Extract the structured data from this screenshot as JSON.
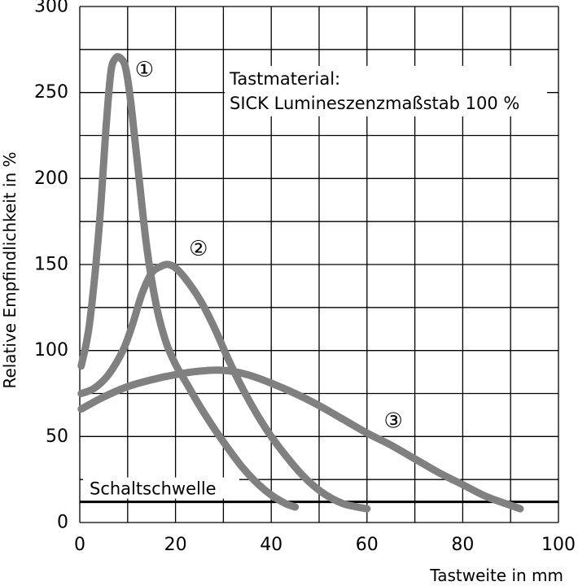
{
  "chart_data": {
    "type": "line",
    "title": "",
    "xlabel": "Tastweite in mm",
    "ylabel": "Relative Empfindlichkeit in %",
    "xlim": [
      0,
      100
    ],
    "ylim": [
      0,
      300
    ],
    "x_ticks": [
      0,
      20,
      40,
      60,
      80,
      100
    ],
    "y_ticks": [
      0,
      50,
      100,
      150,
      200,
      250,
      300
    ],
    "grid": true,
    "annotation": {
      "line1": "Tastmaterial:",
      "line2": "SICK Lumineszenzmaßstab 100 %"
    },
    "threshold": {
      "label": "Schaltschwelle",
      "value": 12
    },
    "series": [
      {
        "name": "①",
        "x": [
          0.3,
          2,
          4,
          5.5,
          6.5,
          7.5,
          8.5,
          9.5,
          10.5,
          12,
          14,
          16,
          18,
          20,
          22.5,
          25,
          28,
          31,
          34,
          37,
          40,
          43,
          45
        ],
        "y": [
          91,
          115,
          170,
          230,
          262,
          270,
          270,
          265,
          248,
          210,
          160,
          126,
          105,
          92,
          80,
          68,
          55,
          43,
          32,
          23,
          16,
          11,
          9
        ]
      },
      {
        "name": "②",
        "x": [
          0.3,
          3,
          6,
          9,
          11,
          13,
          15,
          17,
          18.5,
          20,
          22,
          25,
          28,
          31,
          34,
          37,
          40,
          43,
          46,
          49,
          52,
          55,
          58,
          60
        ],
        "y": [
          75,
          78,
          86,
          100,
          115,
          133,
          145,
          149,
          150,
          148,
          142,
          130,
          114,
          95,
          78,
          63,
          50,
          39,
          29,
          21,
          15,
          11,
          9,
          8
        ]
      },
      {
        "name": "③",
        "x": [
          0.3,
          5,
          10,
          15,
          20,
          25,
          30,
          35,
          40,
          45,
          50,
          55,
          60,
          65,
          70,
          75,
          80,
          85,
          90,
          92
        ],
        "y": [
          66,
          73,
          79,
          83,
          86,
          88,
          88.5,
          86,
          81,
          75,
          68,
          60,
          52,
          45,
          37,
          29,
          22,
          15,
          10,
          8
        ]
      }
    ],
    "markers": [
      {
        "label": "①",
        "x": 13.5,
        "y": 263
      },
      {
        "label": "②",
        "x": 24.8,
        "y": 159
      },
      {
        "label": "③",
        "x": 65.5,
        "y": 59
      }
    ]
  }
}
